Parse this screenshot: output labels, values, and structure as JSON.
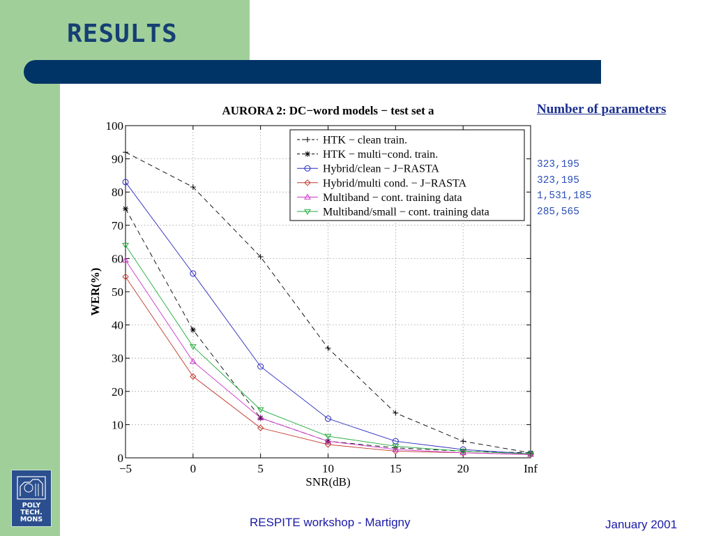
{
  "slide": {
    "title": "RESULTS",
    "footer_center": "RESPITE workshop - Martigny",
    "footer_right": "January 2001",
    "logo_text": [
      "POLY",
      "TECH.",
      "MONS"
    ]
  },
  "colors": {
    "band_green": "#a0cf9a",
    "bar_navy": "#003366",
    "title_blue": "#163f73",
    "params_blue": "#2b4fb8"
  },
  "params": {
    "heading": "Number of parameters",
    "items": [
      "323,195",
      "323,195",
      "1,531,185",
      "285,565"
    ]
  },
  "chart_data": {
    "type": "line",
    "title": "AURORA 2: DC−word models − test set a",
    "xlabel": "SNR(dB)",
    "ylabel": "WER(%)",
    "categories": [
      "−5",
      "0",
      "5",
      "10",
      "15",
      "20",
      "Inf"
    ],
    "ylim": [
      0,
      100
    ],
    "yticks": [
      0,
      10,
      20,
      30,
      40,
      50,
      60,
      70,
      80,
      90,
      100
    ],
    "grid": true,
    "legend_position": "top-right",
    "series": [
      {
        "name": "HTK − clean train.",
        "color": "#000000",
        "dash": "dashed",
        "marker": "plus",
        "values": [
          92,
          81.5,
          60.5,
          33,
          13.5,
          5,
          1.5
        ]
      },
      {
        "name": "HTK − multi−cond. train.",
        "color": "#000000",
        "dash": "dashed",
        "marker": "star",
        "values": [
          75,
          38.5,
          12,
          5,
          3,
          2,
          1.5
        ]
      },
      {
        "name": "Hybrid/clean − J−RASTA",
        "color": "#2b2bbf",
        "dash": "solid",
        "marker": "circle",
        "values": [
          83,
          55.5,
          27.5,
          11.8,
          5,
          2.5,
          1.2
        ]
      },
      {
        "name": "Hybrid/multi cond. − J−RASTA",
        "color": "#c0392b",
        "dash": "solid",
        "marker": "diamond",
        "values": [
          54.5,
          24.5,
          9,
          4,
          2,
          1.5,
          1
        ]
      },
      {
        "name": "Multiband − cont. training data",
        "color": "#cc33cc",
        "dash": "solid",
        "marker": "triangle-up",
        "values": [
          59.5,
          29,
          12,
          5,
          2.5,
          1.5,
          1
        ]
      },
      {
        "name": "Multiband/small − cont. training data",
        "color": "#1faa3a",
        "dash": "solid",
        "marker": "triangle-down",
        "values": [
          64,
          33.5,
          14.5,
          6.5,
          3.5,
          2,
          1.2
        ]
      }
    ]
  }
}
